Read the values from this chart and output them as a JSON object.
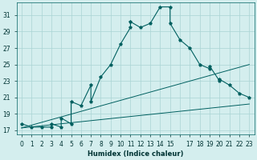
{
  "xlabel": "Humidex (Indice chaleur)",
  "ylabel_ticks": [
    17,
    19,
    21,
    23,
    25,
    27,
    29,
    31
  ],
  "xlim": [
    -0.5,
    23.5
  ],
  "ylim": [
    16.5,
    32.5
  ],
  "bg_color": "#d4eeee",
  "grid_color": "#aad4d4",
  "line_color": "#006060",
  "main_x": [
    0,
    1,
    2,
    3,
    3,
    4,
    4,
    5,
    5,
    6,
    7,
    7,
    8,
    9,
    10,
    11,
    11,
    12,
    13,
    14,
    15,
    15,
    16,
    17,
    18,
    19,
    19,
    20,
    20,
    21,
    22,
    23
  ],
  "main_y": [
    17.8,
    17.4,
    17.4,
    17.4,
    17.8,
    17.4,
    18.5,
    17.8,
    20.5,
    20.0,
    22.5,
    20.5,
    23.5,
    25.0,
    27.5,
    29.5,
    30.2,
    29.5,
    30.0,
    32.0,
    32.0,
    30.0,
    28.0,
    27.0,
    25.0,
    24.5,
    24.8,
    23.0,
    23.2,
    22.5,
    21.5,
    21.0
  ],
  "line2_x": [
    0,
    23
  ],
  "line2_y": [
    17.3,
    25.0
  ],
  "line3_x": [
    0,
    23
  ],
  "line3_y": [
    17.3,
    20.2
  ],
  "xtick_labels": [
    "0",
    "1",
    "2",
    "3",
    "4",
    "5",
    "6",
    "7",
    "8",
    "9",
    "10",
    "11",
    "12",
    "13",
    "14",
    "15",
    "",
    "17",
    "18",
    "19",
    "20",
    "21",
    "22",
    "23"
  ]
}
